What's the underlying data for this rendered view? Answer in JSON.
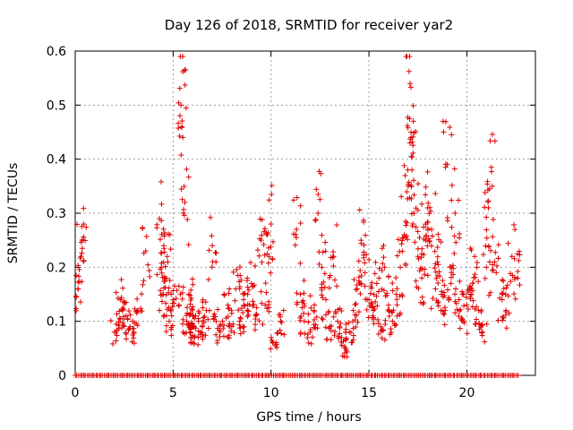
{
  "chart_data": {
    "type": "scatter",
    "title": "Day 126 of 2018, SRMTID for receiver yar2",
    "xlabel": "GPS time / hours",
    "ylabel": "SRMTID / TECUs",
    "xlim": [
      0,
      23.5
    ],
    "ylim": [
      0,
      0.6
    ],
    "xticks": [
      0,
      5,
      10,
      15,
      20
    ],
    "xtick_labels": [
      "0",
      "5",
      "10",
      "15",
      "20"
    ],
    "yticks": [
      0,
      0.1,
      0.2,
      0.3,
      0.4,
      0.5,
      0.6
    ],
    "ytick_labels": [
      "0",
      "0.1",
      "0.2",
      "0.3",
      "0.4",
      "0.5",
      "0.6"
    ],
    "grid": true,
    "marker": "+",
    "color": "#e00000",
    "series": [
      {
        "name": "yar2",
        "x": [
          0.15,
          0.3,
          0.35,
          2.0,
          2.3,
          2.4,
          2.6,
          2.8,
          3.0,
          3.2,
          3.6,
          4.3,
          4.4,
          4.5,
          4.6,
          4.7,
          4.8,
          5.0,
          5.3,
          5.4,
          5.45,
          5.6,
          5.7,
          5.8,
          5.9,
          6.0,
          6.1,
          6.3,
          6.5,
          6.7,
          7.0,
          7.2,
          7.4,
          7.8,
          8.0,
          8.2,
          8.4,
          8.6,
          8.8,
          9.0,
          9.2,
          9.5,
          9.7,
          9.9,
          10.0,
          10.1,
          10.5,
          11.3,
          11.5,
          11.7,
          12.0,
          12.2,
          12.4,
          12.6,
          12.8,
          13.0,
          13.2,
          13.4,
          13.6,
          13.8,
          14.0,
          14.2,
          14.4,
          14.6,
          14.8,
          15.0,
          15.2,
          15.4,
          15.6,
          15.8,
          16.0,
          16.2,
          16.4,
          16.6,
          16.8,
          17.0,
          17.1,
          17.15,
          17.2,
          17.3,
          17.5,
          17.7,
          17.9,
          18.0,
          18.2,
          18.4,
          18.5,
          18.7,
          18.9,
          19.0,
          19.2,
          19.4,
          19.6,
          19.8,
          20.0,
          20.2,
          20.4,
          20.6,
          20.8,
          21.0,
          21.1,
          21.3,
          21.5,
          21.8,
          22.0,
          22.3,
          22.6
        ],
        "y": [
          0.16,
          0.22,
          0.25,
          0.08,
          0.14,
          0.12,
          0.11,
          0.09,
          0.08,
          0.12,
          0.23,
          0.29,
          0.2,
          0.15,
          0.18,
          0.22,
          0.1,
          0.14,
          0.13,
          0.5,
          0.46,
          0.32,
          0.1,
          0.15,
          0.08,
          0.11,
          0.07,
          0.1,
          0.09,
          0.12,
          0.24,
          0.1,
          0.08,
          0.13,
          0.09,
          0.16,
          0.1,
          0.14,
          0.12,
          0.17,
          0.11,
          0.25,
          0.13,
          0.22,
          0.28,
          0.06,
          0.1,
          0.27,
          0.15,
          0.1,
          0.08,
          0.12,
          0.3,
          0.2,
          0.14,
          0.09,
          0.22,
          0.1,
          0.07,
          0.05,
          0.08,
          0.12,
          0.16,
          0.25,
          0.19,
          0.14,
          0.11,
          0.17,
          0.09,
          0.2,
          0.13,
          0.1,
          0.15,
          0.2,
          0.26,
          0.35,
          0.54,
          0.45,
          0.38,
          0.3,
          0.22,
          0.18,
          0.25,
          0.31,
          0.27,
          0.16,
          0.21,
          0.15,
          0.12,
          0.39,
          0.2,
          0.3,
          0.14,
          0.1,
          0.13,
          0.15,
          0.22,
          0.12,
          0.08,
          0.2,
          0.31,
          0.35,
          0.19,
          0.14,
          0.12,
          0.22,
          0.18
        ]
      }
    ],
    "zero_count": 260,
    "zero_x_range": [
      0.0,
      22.6
    ]
  }
}
